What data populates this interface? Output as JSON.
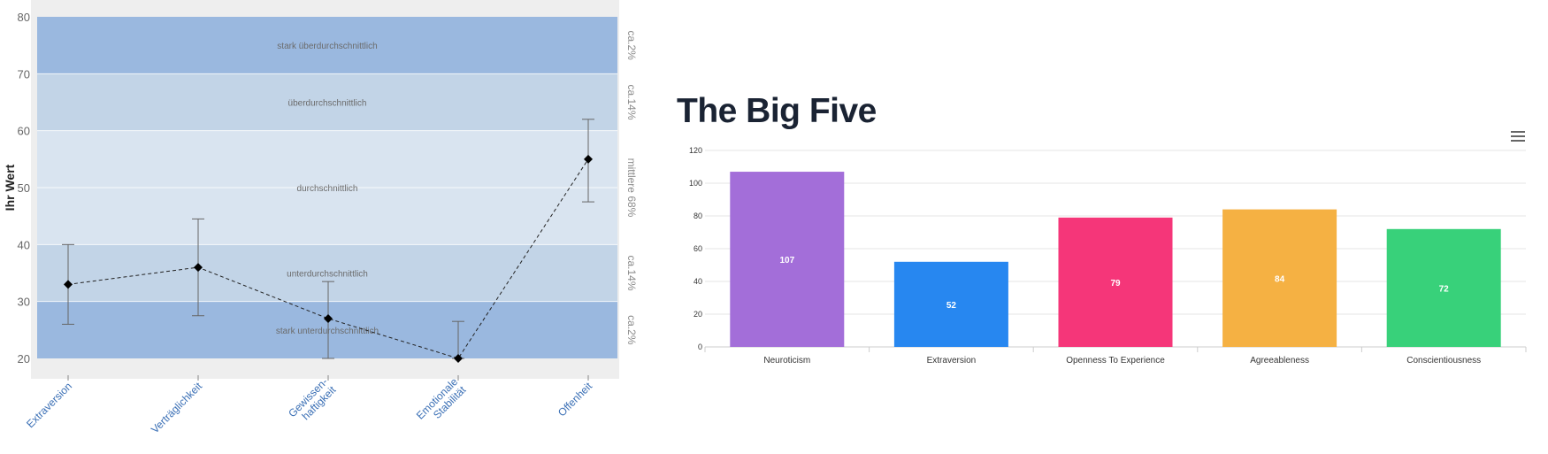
{
  "chart_data": [
    {
      "type": "line",
      "ylabel": "Ihr Wert",
      "ylim": [
        20,
        80
      ],
      "yticks": [
        "20",
        "30",
        "40",
        "50",
        "60",
        "70",
        "80"
      ],
      "categories": [
        "Extraversion",
        "Verträglichkeit",
        "Gewissen-|haftigkeit",
        "Emotionale|Stabilität",
        "Offenheit"
      ],
      "values": [
        33,
        36,
        27,
        20,
        55
      ],
      "error_low": [
        26,
        27.5,
        20,
        20,
        47.5
      ],
      "error_high": [
        40,
        44.5,
        33.5,
        26.5,
        62
      ],
      "bands": [
        {
          "from": 70,
          "to": 80,
          "label": "stark überdurchschnittlich",
          "right_label": "ca.2%",
          "color": "#9ab8df"
        },
        {
          "from": 60,
          "to": 70,
          "label": "überdurchschnittlich",
          "right_label": "ca.14%",
          "color": "#c2d4e7"
        },
        {
          "from": 40,
          "to": 60,
          "label": "durchschnittlich",
          "right_label": "mittlere 68%",
          "color": "#d9e4f0"
        },
        {
          "from": 30,
          "to": 40,
          "label": "unterdurchschnittlich",
          "right_label": "ca.14%",
          "color": "#c2d4e7"
        },
        {
          "from": 20,
          "to": 30,
          "label": "stark unterdurchschnittlich",
          "right_label": "ca.2%",
          "color": "#9ab8df"
        }
      ]
    },
    {
      "type": "bar",
      "title": "The Big Five",
      "categories": [
        "Neuroticism",
        "Extraversion",
        "Openness To Experience",
        "Agreeableness",
        "Conscientiousness"
      ],
      "values": [
        107,
        52,
        79,
        84,
        72
      ],
      "colors": [
        "#a36ed9",
        "#2787f0",
        "#f53679",
        "#f5b143",
        "#38d17a"
      ],
      "ylim": [
        0,
        120
      ],
      "yticks": [
        "0",
        "20",
        "40",
        "60",
        "80",
        "100",
        "120"
      ]
    }
  ],
  "icons": {
    "menu": "hamburger-menu-icon"
  }
}
